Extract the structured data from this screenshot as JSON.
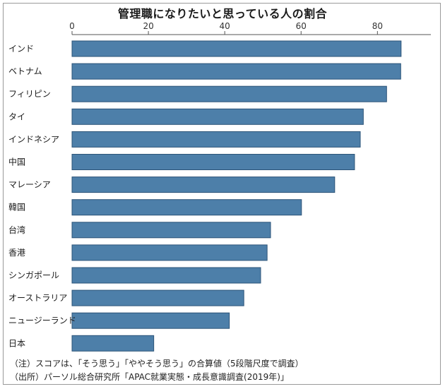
{
  "chart_data": {
    "type": "bar",
    "orientation": "horizontal",
    "title": "管理職になりたいと思っている人の割合",
    "categories": [
      "インド",
      "ベトナム",
      "フィリピン",
      "タイ",
      "インドネシア",
      "中国",
      "マレーシア",
      "韓国",
      "台湾",
      "香港",
      "シンガポール",
      "オーストラリア",
      "ニュージーランド",
      "日本"
    ],
    "values": [
      86.2,
      86.1,
      82.4,
      76.3,
      75.5,
      74.0,
      68.8,
      60.1,
      52.0,
      51.1,
      49.4,
      45.0,
      41.2,
      21.4
    ],
    "xlim": [
      0,
      94
    ],
    "xticks": [
      0,
      20,
      40,
      60,
      80
    ],
    "tick_labels": [
      "0",
      "20",
      "40",
      "60",
      "80"
    ],
    "xlabel": "",
    "ylabel": "",
    "grid": false,
    "legend": "none",
    "bar_color": "#4d7fa9",
    "bar_edge_color": "#2c5478"
  },
  "notes": {
    "line1": "（注）スコアは、「そう思う」「ややそう思う」の合算値（5段階尺度で調査）",
    "line2": "（出所）パーソル総合研究所「APAC就業実態・成長意識調査(2019年)」"
  }
}
